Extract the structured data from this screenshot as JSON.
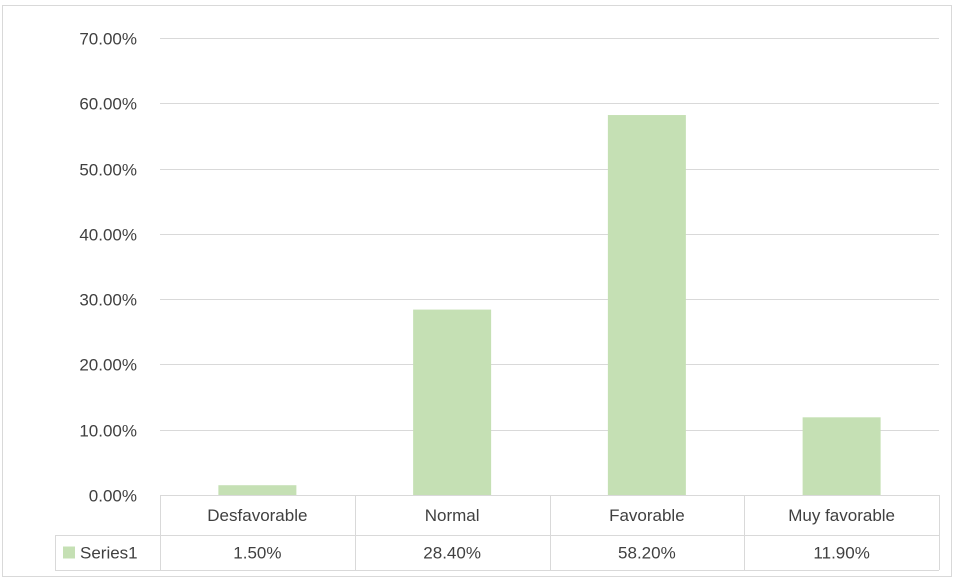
{
  "chart_data": {
    "type": "bar",
    "categories": [
      "Desfavorable",
      "Normal",
      "Favorable",
      "Muy favorable"
    ],
    "series": [
      {
        "name": "Series1",
        "values": [
          1.5,
          28.4,
          58.2,
          11.9
        ],
        "value_labels": [
          "1.50%",
          "28.40%",
          "58.20%",
          "11.90%"
        ]
      }
    ],
    "y_ticks": [
      "0.00%",
      "10.00%",
      "20.00%",
      "30.00%",
      "40.00%",
      "50.00%",
      "60.00%",
      "70.00%"
    ],
    "ylim": [
      0,
      70
    ],
    "grid": true,
    "legend": "data-table",
    "bar_color": "#c5e0b4",
    "grid_color": "#d9d9d9",
    "text_color": "#404040"
  }
}
